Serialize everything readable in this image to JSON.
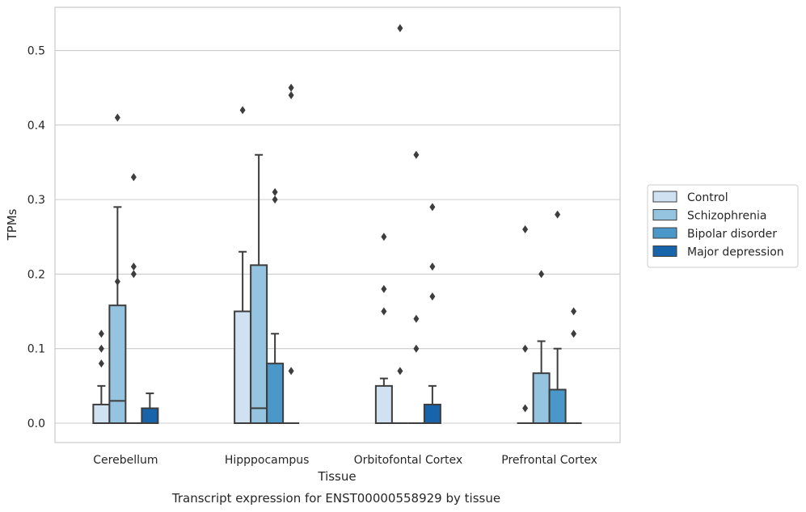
{
  "chart_data": {
    "type": "box",
    "title": "",
    "caption": "Transcript expression for ENST00000558929 by tissue",
    "xlabel": "Tissue",
    "ylabel": "TPMs",
    "ylim": [
      -0.026,
      0.558
    ],
    "yticks": [
      "0.0",
      "0.1",
      "0.2",
      "0.3",
      "0.4",
      "0.5"
    ],
    "ytick_values": [
      0.0,
      0.1,
      0.2,
      0.3,
      0.4,
      0.5
    ],
    "grid": "horizontal",
    "legend_position": "right",
    "categories": [
      "Cerebellum",
      "Hipppocampus",
      "Orbitofontal Cortex",
      "Prefrontal Cortex"
    ],
    "series": [
      {
        "name": "Control",
        "color": "#d0e1f2",
        "boxes": [
          {
            "q1": 0.0,
            "median": 0.0,
            "q3": 0.025,
            "whisker_low": 0.0,
            "whisker_high": 0.05,
            "outliers": [
              0.08,
              0.1,
              0.12
            ]
          },
          {
            "q1": 0.0,
            "median": 0.0,
            "q3": 0.15,
            "whisker_low": 0.0,
            "whisker_high": 0.23,
            "outliers": [
              0.42
            ]
          },
          {
            "q1": 0.0,
            "median": 0.0,
            "q3": 0.05,
            "whisker_low": 0.0,
            "whisker_high": 0.06,
            "outliers": [
              0.15,
              0.18,
              0.25
            ]
          },
          {
            "q1": 0.0,
            "median": 0.0,
            "q3": 0.0,
            "whisker_low": 0.0,
            "whisker_high": 0.0,
            "outliers": [
              0.02,
              0.1,
              0.26
            ]
          }
        ]
      },
      {
        "name": "Schizophrenia",
        "color": "#94c4df",
        "boxes": [
          {
            "q1": 0.0,
            "median": 0.03,
            "q3": 0.158,
            "whisker_low": 0.0,
            "whisker_high": 0.29,
            "outliers": [
              0.19,
              0.41
            ]
          },
          {
            "q1": 0.0,
            "median": 0.02,
            "q3": 0.212,
            "whisker_low": 0.0,
            "whisker_high": 0.36,
            "outliers": []
          },
          {
            "q1": 0.0,
            "median": 0.0,
            "q3": 0.0,
            "whisker_low": 0.0,
            "whisker_high": 0.0,
            "outliers": [
              0.07,
              0.53
            ]
          },
          {
            "q1": 0.0,
            "median": 0.0,
            "q3": 0.067,
            "whisker_low": 0.0,
            "whisker_high": 0.11,
            "outliers": [
              0.2
            ]
          }
        ]
      },
      {
        "name": "Bipolar disorder",
        "color": "#4a98c9",
        "boxes": [
          {
            "q1": 0.0,
            "median": 0.0,
            "q3": 0.0,
            "whisker_low": 0.0,
            "whisker_high": 0.0,
            "outliers": [
              0.2,
              0.21,
              0.33
            ]
          },
          {
            "q1": 0.0,
            "median": 0.0,
            "q3": 0.08,
            "whisker_low": 0.0,
            "whisker_high": 0.12,
            "outliers": [
              0.3,
              0.31
            ]
          },
          {
            "q1": 0.0,
            "median": 0.0,
            "q3": 0.0,
            "whisker_low": 0.0,
            "whisker_high": 0.0,
            "outliers": [
              0.1,
              0.14,
              0.36
            ]
          },
          {
            "q1": 0.0,
            "median": 0.0,
            "q3": 0.045,
            "whisker_low": 0.0,
            "whisker_high": 0.1,
            "outliers": [
              0.28
            ]
          }
        ]
      },
      {
        "name": "Major depression",
        "color": "#1764ab",
        "boxes": [
          {
            "q1": 0.0,
            "median": 0.0,
            "q3": 0.02,
            "whisker_low": 0.0,
            "whisker_high": 0.04,
            "outliers": []
          },
          {
            "q1": 0.0,
            "median": 0.0,
            "q3": 0.0,
            "whisker_low": 0.0,
            "whisker_high": 0.0,
            "outliers": [
              0.07,
              0.44,
              0.45
            ]
          },
          {
            "q1": 0.0,
            "median": 0.0,
            "q3": 0.025,
            "whisker_low": 0.0,
            "whisker_high": 0.05,
            "outliers": [
              0.17,
              0.21,
              0.29
            ]
          },
          {
            "q1": 0.0,
            "median": 0.0,
            "q3": 0.0,
            "whisker_low": 0.0,
            "whisker_high": 0.0,
            "outliers": [
              0.12,
              0.15
            ]
          }
        ]
      }
    ]
  }
}
